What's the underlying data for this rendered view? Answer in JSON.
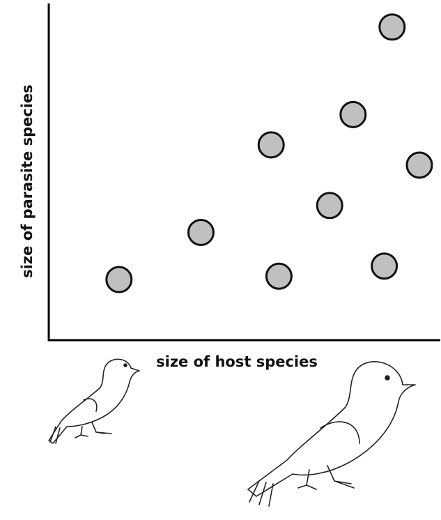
{
  "chart_data": {
    "type": "scatter",
    "x_label": "size of host species",
    "y_label": "size of parasite species",
    "x": [
      1.8,
      3.9,
      5.7,
      5.9,
      7.2,
      7.8,
      8.6,
      8.8,
      9.5
    ],
    "values": [
      1.8,
      3.2,
      5.8,
      1.9,
      4.0,
      6.7,
      2.2,
      9.3,
      5.2
    ],
    "color": "#c0c0c0",
    "xlim": [
      0,
      10
    ],
    "ylim": [
      0,
      10
    ]
  }
}
